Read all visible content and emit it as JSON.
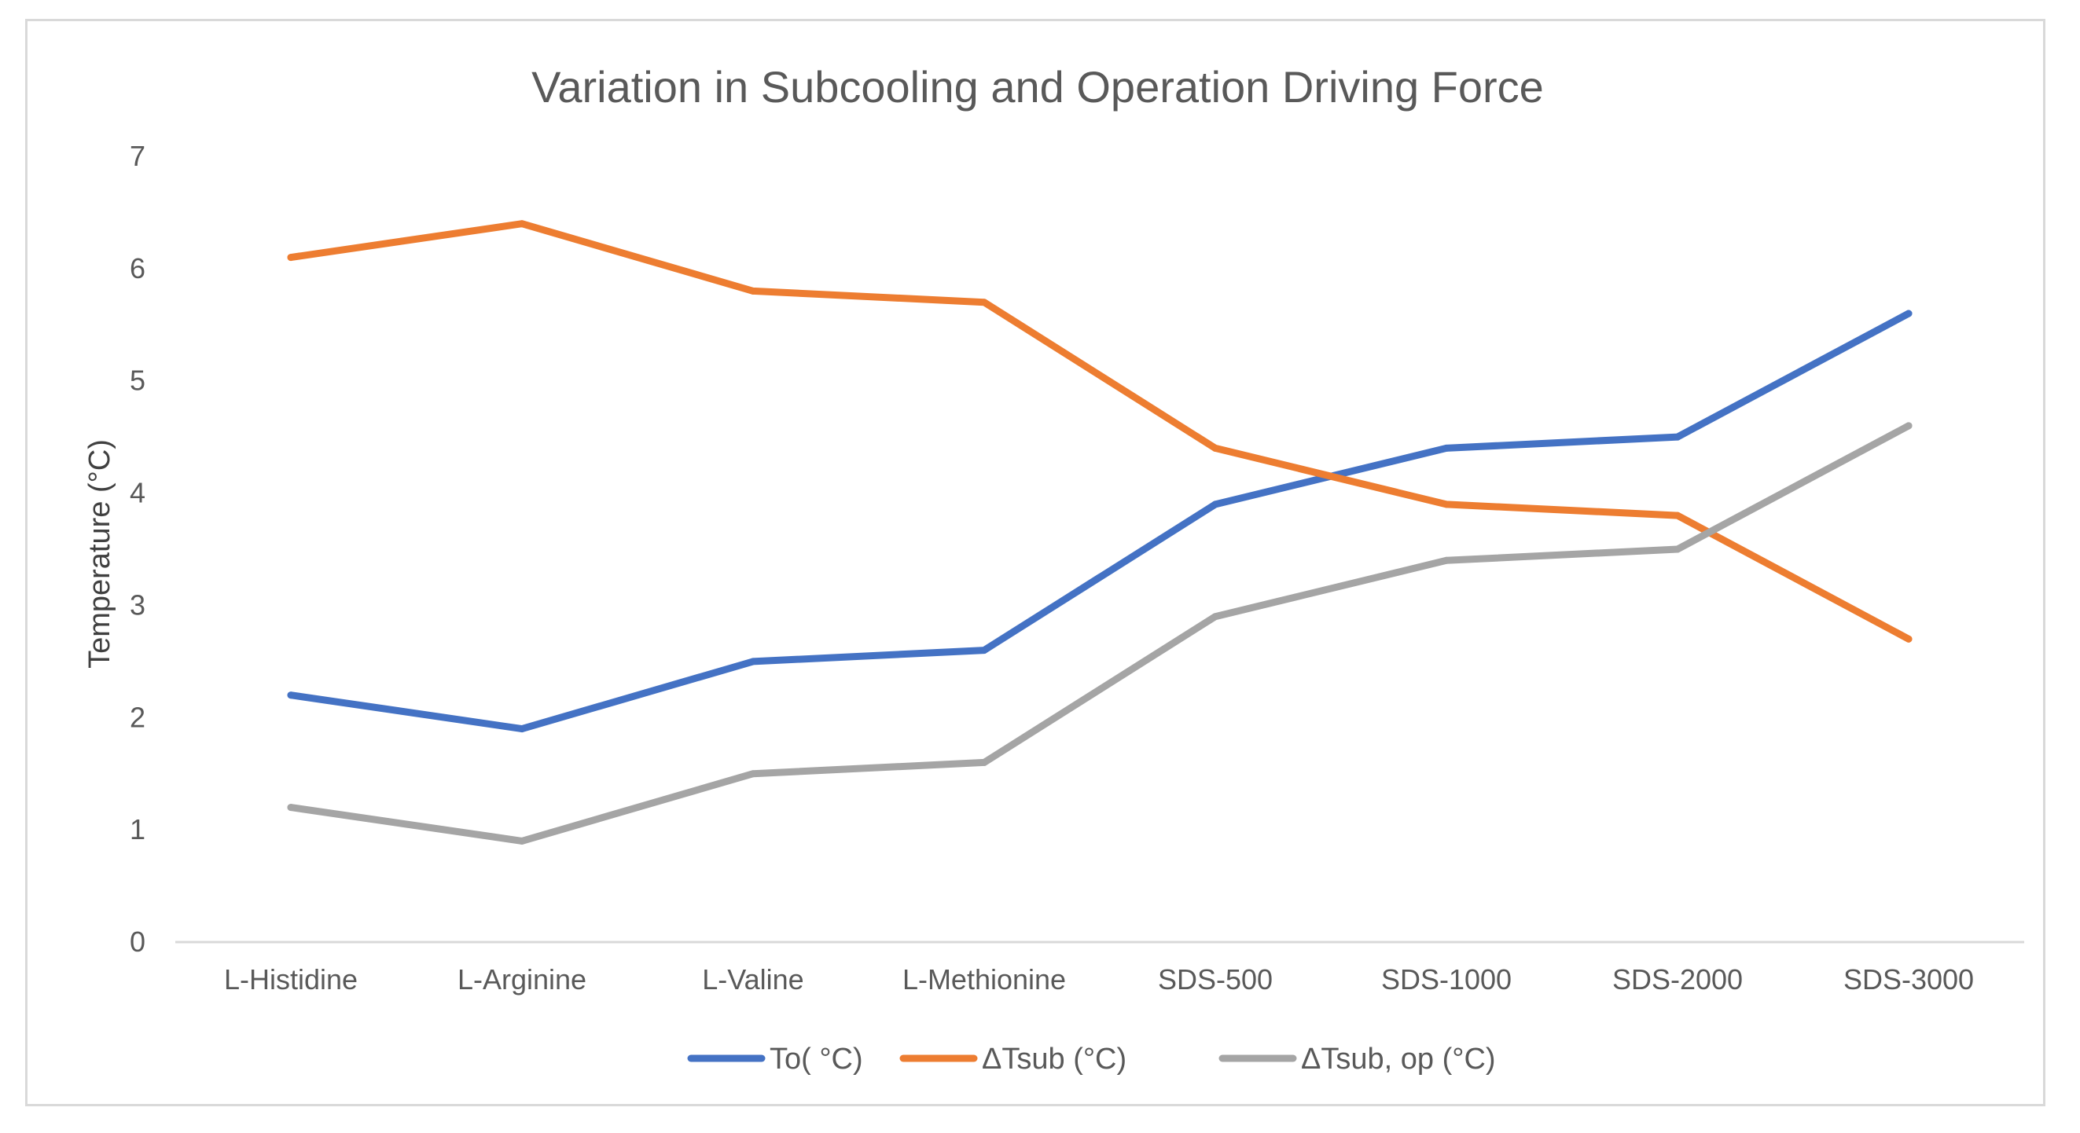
{
  "chart_data": {
    "type": "line",
    "title": "Variation in Subcooling and Operation Driving Force",
    "xlabel": "",
    "ylabel": "Temperature (°C)",
    "ylim": [
      0,
      7
    ],
    "yticks": [
      "0",
      "1",
      "2",
      "3",
      "4",
      "5",
      "6",
      "7"
    ],
    "grid": false,
    "legend_position": "bottom",
    "categories": [
      "L-Histidine",
      "L-Arginine",
      "L-Valine",
      "L-Methionine",
      "SDS-500",
      "SDS-1000",
      "SDS-2000",
      "SDS-3000"
    ],
    "series": [
      {
        "name": "To( °C)",
        "color": "#4472c4",
        "values": [
          2.2,
          1.9,
          2.5,
          2.6,
          3.9,
          4.4,
          4.5,
          5.6
        ]
      },
      {
        "name": "ΔTsub (°C)",
        "color": "#ed7d31",
        "values": [
          6.1,
          6.4,
          5.8,
          5.7,
          4.4,
          3.9,
          3.8,
          2.7
        ]
      },
      {
        "name": "ΔTsub, op (°C)",
        "color": "#a5a5a5",
        "values": [
          1.2,
          0.9,
          1.5,
          1.6,
          2.9,
          3.4,
          3.5,
          4.6
        ]
      }
    ]
  }
}
